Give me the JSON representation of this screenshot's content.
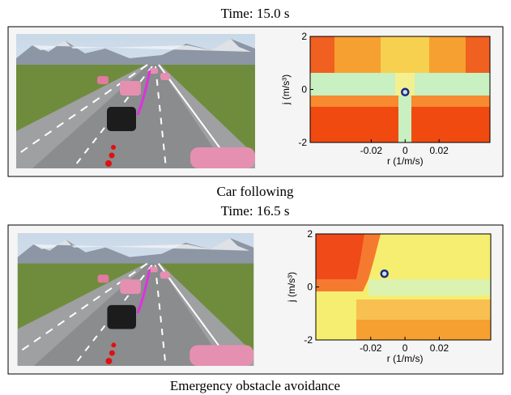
{
  "panels": [
    {
      "title": "Time: 15.0 s",
      "caption": "Car following"
    },
    {
      "title": "Time: 16.5 s",
      "caption": "Emergency obstacle avoidance"
    }
  ],
  "chart_data": [
    {
      "type": "scatter",
      "xlabel": "r (1/m/s)",
      "ylabel": "j (m/s³)",
      "xlim": [
        -0.056,
        0.05
      ],
      "ylim": [
        -2,
        2
      ],
      "xticks": [
        -0.02,
        0,
        0.02
      ],
      "yticks": [
        -2,
        0,
        2
      ],
      "x": [
        0
      ],
      "y": [
        -0.1
      ],
      "color": "#1a2a80"
    },
    {
      "type": "scatter",
      "xlabel": "r (1/m/s)",
      "ylabel": "j (m/s³)",
      "xlim": [
        -0.052,
        0.05
      ],
      "ylim": [
        -2,
        2
      ],
      "xticks": [
        -0.02,
        0,
        0.02
      ],
      "yticks": [
        -2,
        0,
        2
      ],
      "x": [
        -0.012
      ],
      "y": [
        0.5
      ],
      "color": "#1a2a80"
    }
  ]
}
